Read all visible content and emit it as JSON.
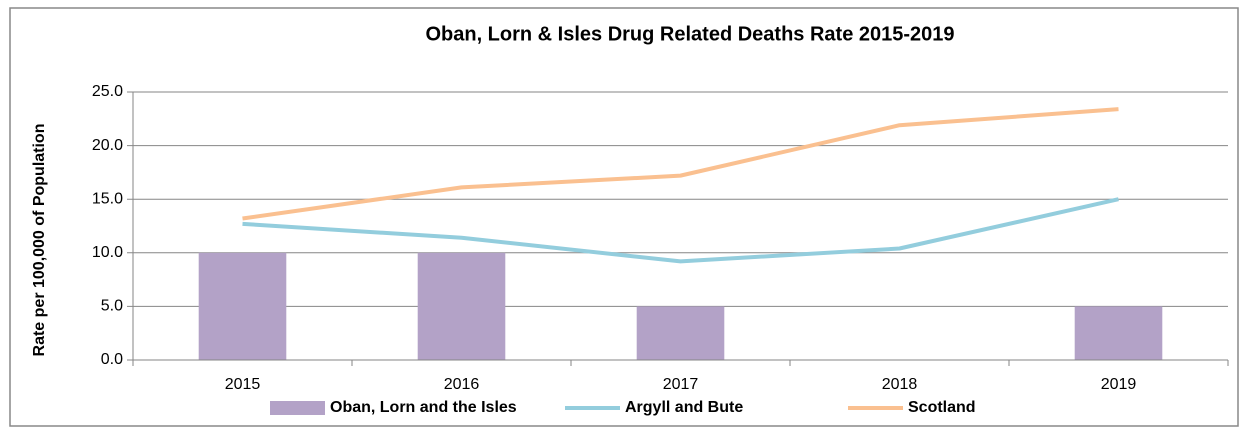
{
  "chart_data": {
    "type": "combo",
    "title": "Oban, Lorn & Isles Drug Related Deaths Rate 2015-2019",
    "y_label": "Rate per 100,000 of Population",
    "categories": [
      "2015",
      "2016",
      "2017",
      "2018",
      "2019"
    ],
    "series": [
      {
        "name": "Oban, Lorn and the Isles",
        "type": "bar",
        "color": "#b3a2c7",
        "values": [
          10,
          10,
          5,
          0,
          5
        ]
      },
      {
        "name": "Argyll and Bute",
        "type": "line",
        "color": "#93cddd",
        "values": [
          12.7,
          11.4,
          9.2,
          10.4,
          15.0
        ]
      },
      {
        "name": "Scotland",
        "type": "line",
        "color": "#fac090",
        "values": [
          13.2,
          16.1,
          17.2,
          21.9,
          23.4
        ]
      }
    ],
    "ylim": [
      0,
      25
    ],
    "yticks": [
      {
        "value": 0,
        "label": "0.0"
      },
      {
        "value": 5,
        "label": "5.0"
      },
      {
        "value": 10,
        "label": "10.0"
      },
      {
        "value": 15,
        "label": "15.0"
      },
      {
        "value": 20,
        "label": "20.0"
      },
      {
        "value": 25,
        "label": "25.0"
      }
    ],
    "grid": true,
    "legend": "bottom"
  }
}
